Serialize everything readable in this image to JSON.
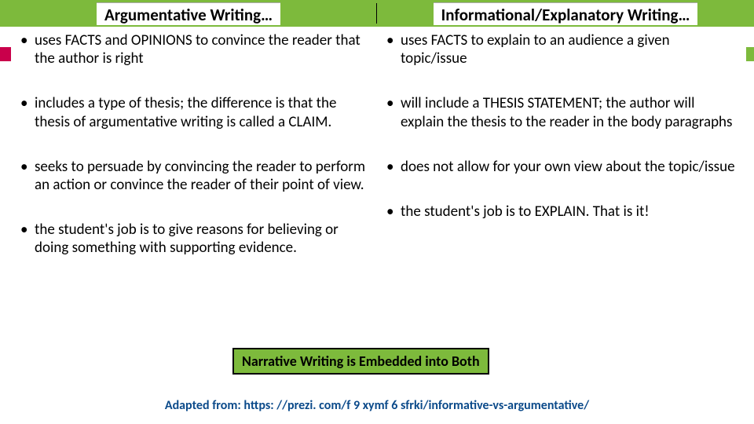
{
  "header": {
    "left": "Argumentative Writing…",
    "right": "Informational/Explanatory Writing…"
  },
  "columns": {
    "left": [
      "uses FACTS and OPINIONS to convince the reader that the author is right",
      "includes a type of thesis; the difference is that the thesis of argumentative writing is called a CLAIM.",
      "seeks to persuade by convincing the reader to perform an action or convince the reader of their point of view.",
      "the student's job is to give reasons for believing or doing something with supporting evidence."
    ],
    "right": [
      "uses FACTS to explain to an audience a given topic/issue",
      "will include a THESIS STATEMENT; the author will explain the thesis to the reader in the body paragraphs",
      "does not allow for your own view about the topic/issue",
      "the student's job is to EXPLAIN. That is it!"
    ]
  },
  "callout": "Narrative Writing is Embedded into Both",
  "footer": "Adapted from: https: //prezi. com/f 9 xymf 6 sfrki/informative-vs-argumentative/",
  "colors": {
    "green": "#7dba3c",
    "magenta": "#c9004b",
    "link": "#0b4a8a",
    "background": "#ffffff"
  },
  "typography": {
    "header_fontsize": 21,
    "bullet_fontsize": 19,
    "callout_fontsize": 18,
    "footer_fontsize": 16,
    "font_family": "Calibri"
  }
}
